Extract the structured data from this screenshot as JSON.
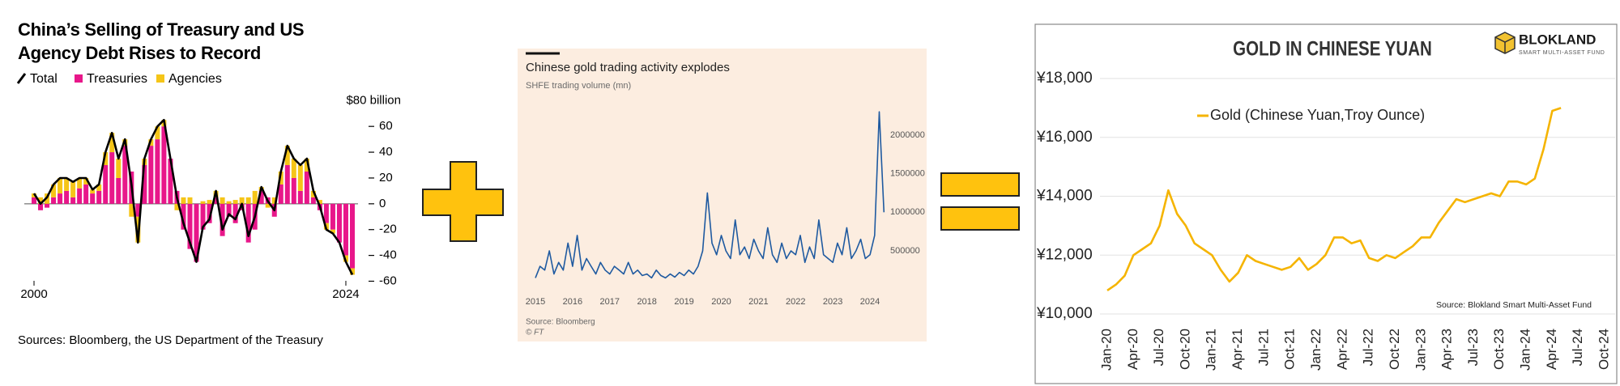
{
  "chart_data": [
    {
      "type": "bar",
      "stacked": true,
      "title": "China’s Selling of Treasury and US Agency Debt Rises to Record",
      "x": [
        2000,
        2000.5,
        2001,
        2001.5,
        2002,
        2002.5,
        2003,
        2003.5,
        2004,
        2004.5,
        2005,
        2005.5,
        2006,
        2006.5,
        2007,
        2007.5,
        2008,
        2008.5,
        2009,
        2009.5,
        2010,
        2010.5,
        2011,
        2011.5,
        2012,
        2012.5,
        2013,
        2013.5,
        2014,
        2014.5,
        2015,
        2015.5,
        2016,
        2016.5,
        2017,
        2017.5,
        2018,
        2018.5,
        2019,
        2019.5,
        2020,
        2020.5,
        2021,
        2021.5,
        2022,
        2022.5,
        2023,
        2023.5,
        2024,
        2024.5
      ],
      "xlim": [
        2000,
        2024.5
      ],
      "xticks": [
        2000,
        2024
      ],
      "ylim": [
        -60,
        80
      ],
      "yticks": [
        {
          "value": 80,
          "label": "$80 billion"
        },
        60,
        40,
        20,
        0,
        -20,
        -40,
        -60
      ],
      "series": [
        {
          "name": "Total",
          "type": "line",
          "color": "#000000",
          "values": [
            8,
            0,
            5,
            15,
            20,
            20,
            17,
            20,
            20,
            11,
            15,
            40,
            55,
            35,
            50,
            15,
            -30,
            35,
            50,
            60,
            65,
            35,
            5,
            -15,
            -30,
            -45,
            -18,
            -12,
            10,
            -20,
            -8,
            -12,
            0,
            -25,
            -10,
            13,
            2,
            -5,
            25,
            45,
            35,
            30,
            35,
            10,
            -2,
            -20,
            -23,
            -30,
            -45,
            -55
          ]
        },
        {
          "name": "Treasuries",
          "color": "#e8178a",
          "values": [
            5,
            -5,
            -3,
            5,
            8,
            10,
            5,
            12,
            15,
            8,
            10,
            30,
            40,
            20,
            45,
            25,
            -10,
            30,
            45,
            50,
            60,
            35,
            10,
            -20,
            -35,
            -45,
            -20,
            -15,
            5,
            -25,
            -10,
            -15,
            -5,
            -30,
            -20,
            10,
            5,
            -10,
            15,
            30,
            20,
            10,
            25,
            5,
            -5,
            -15,
            -20,
            -30,
            -40,
            -50
          ]
        },
        {
          "name": "Agencies",
          "color": "#f5c518",
          "values": [
            3,
            5,
            8,
            10,
            12,
            10,
            12,
            8,
            5,
            3,
            5,
            10,
            15,
            15,
            5,
            -10,
            -20,
            5,
            5,
            10,
            5,
            0,
            -5,
            5,
            5,
            0,
            2,
            3,
            5,
            5,
            2,
            3,
            5,
            5,
            10,
            3,
            -3,
            5,
            10,
            15,
            15,
            20,
            10,
            5,
            3,
            -5,
            -3,
            0,
            -5,
            -5
          ]
        }
      ],
      "source": "Sources: Bloomberg, the US Department of the Treasury"
    },
    {
      "type": "line",
      "title": "Chinese gold trading activity explodes",
      "subtitle": "SHFE trading volume (mn)",
      "x": [
        2015,
        2015.125,
        2015.25,
        2015.375,
        2015.5,
        2015.625,
        2015.75,
        2015.875,
        2016,
        2016.125,
        2016.25,
        2016.375,
        2016.5,
        2016.625,
        2016.75,
        2016.875,
        2017,
        2017.125,
        2017.25,
        2017.375,
        2017.5,
        2017.625,
        2017.75,
        2017.875,
        2018,
        2018.125,
        2018.25,
        2018.375,
        2018.5,
        2018.625,
        2018.75,
        2018.875,
        2019,
        2019.125,
        2019.25,
        2019.375,
        2019.5,
        2019.625,
        2019.75,
        2019.875,
        2020,
        2020.125,
        2020.25,
        2020.375,
        2020.5,
        2020.625,
        2020.75,
        2020.875,
        2021,
        2021.125,
        2021.25,
        2021.375,
        2021.5,
        2021.625,
        2021.75,
        2021.875,
        2022,
        2022.125,
        2022.25,
        2022.375,
        2022.5,
        2022.625,
        2022.75,
        2022.875,
        2023,
        2023.125,
        2023.25,
        2023.375,
        2023.5,
        2023.625,
        2023.75,
        2023.875,
        2024,
        2024.125,
        2024.25,
        2024.375
      ],
      "color": "#1f5aa0",
      "values": [
        150000,
        300000,
        250000,
        500000,
        200000,
        350000,
        250000,
        600000,
        300000,
        700000,
        250000,
        400000,
        300000,
        200000,
        350000,
        250000,
        200000,
        300000,
        250000,
        200000,
        350000,
        200000,
        250000,
        180000,
        200000,
        150000,
        250000,
        180000,
        150000,
        200000,
        160000,
        220000,
        180000,
        250000,
        200000,
        300000,
        500000,
        1250000,
        600000,
        450000,
        700000,
        500000,
        400000,
        900000,
        450000,
        550000,
        400000,
        650000,
        500000,
        400000,
        800000,
        450000,
        350000,
        600000,
        400000,
        500000,
        450000,
        700000,
        350000,
        550000,
        400000,
        900000,
        450000,
        400000,
        350000,
        600000,
        450000,
        800000,
        400000,
        500000,
        650000,
        400000,
        450000,
        700000,
        2300000,
        1000000
      ],
      "xlim": [
        2015,
        2024.5
      ],
      "xticks": [
        2015,
        2016,
        2017,
        2018,
        2019,
        2020,
        2021,
        2022,
        2023,
        2024
      ],
      "ylim": [
        0,
        2400000
      ],
      "yticks": [
        500000,
        1000000,
        1500000,
        2000000
      ],
      "source": "Source: Bloomberg",
      "credit": "© FT"
    },
    {
      "type": "line",
      "title": "GOLD IN CHINESE YUAN",
      "logo": "BLOKLAND",
      "logo_tagline": "SMART MULTI-ASSET FUND",
      "x": [
        "Jan-20",
        "Feb-20",
        "Mar-20",
        "Apr-20",
        "May-20",
        "Jun-20",
        "Jul-20",
        "Aug-20",
        "Sep-20",
        "Oct-20",
        "Nov-20",
        "Dec-20",
        "Jan-21",
        "Feb-21",
        "Mar-21",
        "Apr-21",
        "May-21",
        "Jun-21",
        "Jul-21",
        "Aug-21",
        "Sep-21",
        "Oct-21",
        "Nov-21",
        "Dec-21",
        "Jan-22",
        "Feb-22",
        "Mar-22",
        "Apr-22",
        "May-22",
        "Jun-22",
        "Jul-22",
        "Aug-22",
        "Sep-22",
        "Oct-22",
        "Nov-22",
        "Dec-22",
        "Jan-23",
        "Feb-23",
        "Mar-23",
        "Apr-23",
        "May-23",
        "Jun-23",
        "Jul-23",
        "Aug-23",
        "Sep-23",
        "Oct-23",
        "Nov-23",
        "Dec-23",
        "Jan-24",
        "Feb-24",
        "Mar-24",
        "Apr-24",
        "May-24"
      ],
      "series": [
        {
          "name": "Gold (Chinese Yuan,Troy Ounce)",
          "color": "#f5b400",
          "values": [
            10800,
            11000,
            11300,
            12000,
            12200,
            12400,
            13000,
            14200,
            13400,
            13000,
            12400,
            12200,
            12000,
            11500,
            11100,
            11400,
            12000,
            11800,
            11700,
            11600,
            11500,
            11600,
            11900,
            11500,
            11700,
            12000,
            12600,
            12600,
            12400,
            12500,
            11900,
            11800,
            12000,
            11900,
            12100,
            12300,
            12600,
            12600,
            13100,
            13500,
            13900,
            13800,
            13900,
            14000,
            14100,
            14000,
            14500,
            14500,
            14400,
            14600,
            15600,
            16900,
            17000
          ]
        }
      ],
      "xticks": [
        "Jan-20",
        "Apr-20",
        "Jul-20",
        "Oct-20",
        "Jan-21",
        "Apr-21",
        "Jul-21",
        "Oct-21",
        "Jan-22",
        "Apr-22",
        "Jul-22",
        "Oct-22",
        "Jan-23",
        "Apr-23",
        "Jul-23",
        "Oct-23",
        "Jan-24",
        "Apr-24",
        "Jul-24",
        "Oct-24"
      ],
      "ylim": [
        10000,
        18000
      ],
      "yticks": [
        {
          "value": 10000,
          "label": "¥10,000"
        },
        {
          "value": 12000,
          "label": "¥12,000"
        },
        {
          "value": 14000,
          "label": "¥14,000"
        },
        {
          "value": 16000,
          "label": "¥16,000"
        },
        {
          "value": 18000,
          "label": "¥18,000"
        }
      ],
      "grid": true,
      "source": "Source: Blokland Smart Multi-Asset Fund"
    }
  ]
}
